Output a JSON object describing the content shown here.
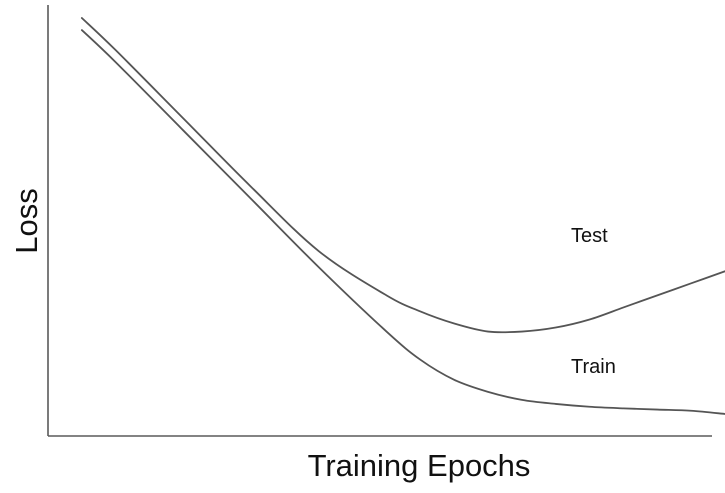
{
  "chart_data": {
    "type": "line",
    "title": "",
    "xlabel": "Training Epochs",
    "ylabel": "Loss",
    "xlim": [
      0,
      100
    ],
    "ylim": [
      0,
      100
    ],
    "grid": false,
    "legend": "inline labels",
    "tick_labels": "none",
    "series": [
      {
        "name": "Test",
        "color": "#555555",
        "x": [
          5,
          10,
          20,
          30,
          40,
          50,
          55,
          60,
          65,
          70,
          75,
          80,
          85,
          90,
          95,
          100
        ],
        "y": [
          100,
          92,
          75,
          58,
          42,
          31,
          27,
          24,
          22,
          22,
          23,
          25,
          28,
          31,
          34,
          37
        ]
      },
      {
        "name": "Train",
        "color": "#555555",
        "x": [
          5,
          10,
          20,
          30,
          40,
          50,
          55,
          60,
          65,
          70,
          75,
          80,
          85,
          90,
          95,
          100
        ],
        "y": [
          97,
          89,
          72,
          55,
          38,
          22,
          15,
          10,
          7,
          5,
          4,
          3.3,
          2.9,
          2.6,
          2.3,
          1.5
        ]
      }
    ]
  }
}
